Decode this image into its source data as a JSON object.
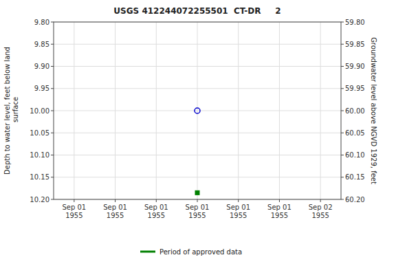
{
  "chart_data": {
    "type": "scatter",
    "title": "USGS 412244072255501  CT-DR     2",
    "y_label": "Depth to water level, feet below land\n surface",
    "y2_label": "Groundwater level above NGVD 1929, feet",
    "categories": [
      "Sep 01\n1955",
      "Sep 01\n1955",
      "Sep 01\n1955",
      "Sep 01\n1955",
      "Sep 01\n1955",
      "Sep 01\n1955",
      "Sep 02\n1955"
    ],
    "series": [
      {
        "color": "#0000cc",
        "marker": "circle",
        "values": [
          null,
          null,
          null,
          10.0,
          null,
          null,
          null
        ]
      },
      {
        "name": "Period of approved data",
        "color": "#008000",
        "marker": "square",
        "values": [
          null,
          null,
          null,
          10.185,
          null,
          null,
          null
        ]
      }
    ],
    "ylim": [
      10.2,
      9.8
    ],
    "yticks": [
      {
        "value": 9.8,
        "label": "9.80"
      },
      {
        "value": 9.85,
        "label": "9.85"
      },
      {
        "value": 9.9,
        "label": "9.90"
      },
      {
        "value": 9.95,
        "label": "9.95"
      },
      {
        "value": 10.0,
        "label": "10.00"
      },
      {
        "value": 10.05,
        "label": "10.05"
      },
      {
        "value": 10.1,
        "label": "10.10"
      },
      {
        "value": 10.15,
        "label": "10.15"
      },
      {
        "value": 10.2,
        "label": "10.20"
      }
    ],
    "y2lim": [
      60.2,
      59.8
    ],
    "y2ticks": [
      {
        "value": 59.8,
        "label": "59.80"
      },
      {
        "value": 59.85,
        "label": "59.85"
      },
      {
        "value": 59.9,
        "label": "59.90"
      },
      {
        "value": 59.95,
        "label": "59.95"
      },
      {
        "value": 60.0,
        "label": "60.00"
      },
      {
        "value": 60.05,
        "label": "60.05"
      },
      {
        "value": 60.1,
        "label": "60.10"
      },
      {
        "value": 60.15,
        "label": "60.15"
      },
      {
        "value": 60.2,
        "label": "60.20"
      }
    ],
    "grid": true,
    "legend": "bottom"
  }
}
